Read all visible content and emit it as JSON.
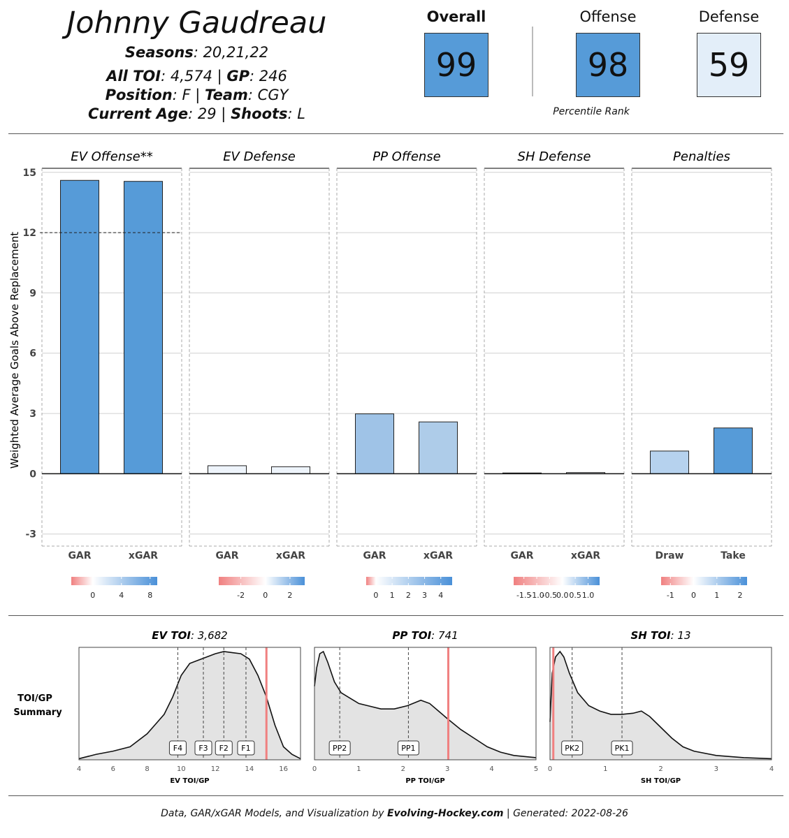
{
  "player": {
    "name": "Johnny Gaudreau",
    "seasons_label": "Seasons",
    "seasons_value": ": 20,21,22",
    "toi_label": "All TOI",
    "toi_value": ": 4,574 | ",
    "gp_label": "GP",
    "gp_value": ": 246",
    "position_label": "Position",
    "position_value": ": F | ",
    "team_label": "Team",
    "team_value": ": CGY",
    "age_label": "Current  Age",
    "age_value": ": 29 | ",
    "shoots_label": "Shoots",
    "shoots_value": ": L"
  },
  "ranks": {
    "overall_label": "Overall",
    "overall_value": "99",
    "offense_label": "Offense",
    "offense_value": "98",
    "defense_label": "Defense",
    "defense_value": "59",
    "caption": "Percentile Rank",
    "colors": {
      "overall": "#569bd8",
      "offense": "#569bd8",
      "defense": "#e3eef9"
    }
  },
  "chart_data": [
    {
      "type": "bar",
      "ylabel": "Weighted Average Goals Above Replacement",
      "yticks": [
        -3,
        0,
        3,
        6,
        9,
        12,
        15
      ],
      "ylim": [
        -3.6,
        15.2
      ],
      "grid": true,
      "facets": [
        {
          "title": "EV Offense**",
          "categories": [
            "GAR",
            "xGAR"
          ],
          "values": [
            14.6,
            14.55
          ],
          "colors": [
            "#569bd8",
            "#569bd8"
          ],
          "reference_line": 12,
          "legend_ticks": [
            "0",
            "4",
            "8"
          ],
          "legend_range": [
            -3,
            9
          ]
        },
        {
          "title": "EV Defense",
          "categories": [
            "GAR",
            "xGAR"
          ],
          "values": [
            0.4,
            0.35
          ],
          "colors": [
            "#eef4fb",
            "#eef4fb"
          ],
          "legend_ticks": [
            "-2",
            "0",
            "2"
          ],
          "legend_range": [
            -3.8,
            3.2
          ]
        },
        {
          "title": "PP Offense",
          "categories": [
            "GAR",
            "xGAR"
          ],
          "values": [
            2.98,
            2.58
          ],
          "colors": [
            "#9fc3e7",
            "#aecce9"
          ],
          "legend_ticks": [
            "0",
            "1",
            "2",
            "3",
            "4"
          ],
          "legend_range": [
            -0.6,
            4.7
          ]
        },
        {
          "title": "SH Defense",
          "categories": [
            "GAR",
            "xGAR"
          ],
          "values": [
            0.04,
            0.06
          ],
          "colors": [
            "#f5f8fc",
            "#f5f8fc"
          ],
          "legend_ticks": [
            "-1.5",
            "-1.0",
            "-0.5",
            "0.0",
            "0.5",
            "1.0"
          ],
          "legend_range": [
            -1.9,
            1.45
          ]
        },
        {
          "title": "Penalties",
          "categories": [
            "Draw",
            "Take"
          ],
          "values": [
            1.13,
            2.28
          ],
          "colors": [
            "#b6d2ee",
            "#569bd8"
          ],
          "legend_ticks": [
            "-1",
            "0",
            "1",
            "2"
          ],
          "legend_range": [
            -1.4,
            2.3
          ]
        }
      ]
    },
    {
      "type": "area",
      "row_label_1": "TOI/GP",
      "row_label_2": "Summary",
      "panels": [
        {
          "title_bold": "EV TOI",
          "title_rest": ": 3,682",
          "xlabel": "EV TOI/GP",
          "xlim": [
            4,
            17
          ],
          "xticks": [
            "4",
            "6",
            "8",
            "10",
            "12",
            "14",
            "16"
          ],
          "player_value": 15.0,
          "markers": [
            {
              "label": "F4",
              "x": 9.8
            },
            {
              "label": "F3",
              "x": 11.3
            },
            {
              "label": "F2",
              "x": 12.5
            },
            {
              "label": "F1",
              "x": 13.8
            }
          ],
          "density": [
            [
              4,
              0.01
            ],
            [
              5,
              0.05
            ],
            [
              6,
              0.08
            ],
            [
              7,
              0.12
            ],
            [
              8,
              0.24
            ],
            [
              8.5,
              0.33
            ],
            [
              9,
              0.42
            ],
            [
              9.5,
              0.58
            ],
            [
              10,
              0.78
            ],
            [
              10.5,
              0.89
            ],
            [
              11,
              0.92
            ],
            [
              11.5,
              0.95
            ],
            [
              12,
              0.98
            ],
            [
              12.5,
              1.0
            ],
            [
              13,
              0.99
            ],
            [
              13.5,
              0.98
            ],
            [
              14,
              0.93
            ],
            [
              14.5,
              0.78
            ],
            [
              15,
              0.58
            ],
            [
              15.5,
              0.32
            ],
            [
              16,
              0.12
            ],
            [
              16.5,
              0.05
            ],
            [
              17,
              0.01
            ]
          ]
        },
        {
          "title_bold": "PP TOI",
          "title_rest": ": 741",
          "xlabel": "PP TOI/GP",
          "xlim": [
            0,
            5
          ],
          "xticks": [
            "0",
            "1",
            "2",
            "3",
            "4",
            "5"
          ],
          "player_value": 3.02,
          "markers": [
            {
              "label": "PP2",
              "x": 0.57
            },
            {
              "label": "PP1",
              "x": 2.12
            }
          ],
          "density": [
            [
              0,
              0.68
            ],
            [
              0.05,
              0.85
            ],
            [
              0.12,
              0.98
            ],
            [
              0.2,
              1.0
            ],
            [
              0.3,
              0.9
            ],
            [
              0.45,
              0.72
            ],
            [
              0.6,
              0.62
            ],
            [
              0.8,
              0.57
            ],
            [
              1.0,
              0.52
            ],
            [
              1.2,
              0.5
            ],
            [
              1.5,
              0.47
            ],
            [
              1.8,
              0.47
            ],
            [
              2.1,
              0.5
            ],
            [
              2.4,
              0.55
            ],
            [
              2.6,
              0.52
            ],
            [
              2.8,
              0.45
            ],
            [
              3.0,
              0.38
            ],
            [
              3.3,
              0.28
            ],
            [
              3.6,
              0.2
            ],
            [
              3.9,
              0.12
            ],
            [
              4.2,
              0.07
            ],
            [
              4.5,
              0.04
            ],
            [
              5,
              0.02
            ]
          ]
        },
        {
          "title_bold": "SH TOI",
          "title_rest": ": 13",
          "xlabel": "SH TOI/GP",
          "xlim": [
            0,
            4
          ],
          "xticks": [
            "0",
            "1",
            "2",
            "3",
            "4"
          ],
          "player_value": 0.06,
          "markers": [
            {
              "label": "PK2",
              "x": 0.4
            },
            {
              "label": "PK1",
              "x": 1.3
            }
          ],
          "density": [
            [
              0,
              0.35
            ],
            [
              0.04,
              0.8
            ],
            [
              0.1,
              0.95
            ],
            [
              0.18,
              1.0
            ],
            [
              0.25,
              0.95
            ],
            [
              0.35,
              0.8
            ],
            [
              0.5,
              0.62
            ],
            [
              0.7,
              0.5
            ],
            [
              0.9,
              0.45
            ],
            [
              1.1,
              0.42
            ],
            [
              1.3,
              0.42
            ],
            [
              1.5,
              0.43
            ],
            [
              1.65,
              0.45
            ],
            [
              1.8,
              0.4
            ],
            [
              2.0,
              0.3
            ],
            [
              2.2,
              0.2
            ],
            [
              2.4,
              0.12
            ],
            [
              2.6,
              0.08
            ],
            [
              3.0,
              0.04
            ],
            [
              3.5,
              0.02
            ],
            [
              4,
              0.01
            ]
          ]
        }
      ]
    }
  ],
  "footer": {
    "text_1": "Data, GAR/xGAR Models,  and Visualization by ",
    "site": "Evolving-Hockey.com",
    "text_2": "  | Generated:  2022-08-26"
  }
}
